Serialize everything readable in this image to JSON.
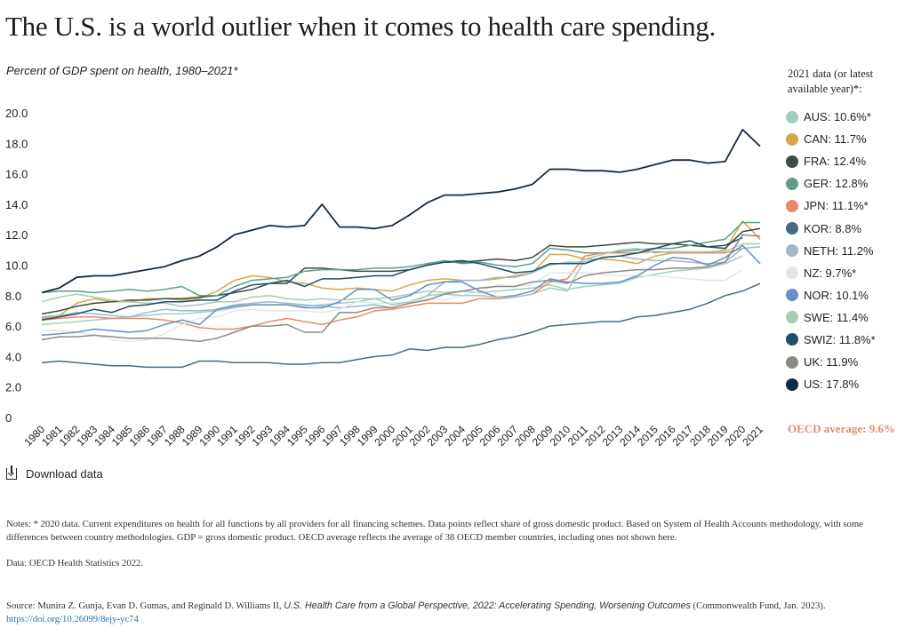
{
  "header": {
    "title": "The U.S. is a world outlier when it comes to health care spending.",
    "subtitle": "Percent of GDP spent on health, 1980–2021*"
  },
  "legend": {
    "heading": "2021 data (or latest available year)*:",
    "oecd_average": "OECD average: 9.6%"
  },
  "download_label": "Download data",
  "footer": {
    "notes": "Notes: * 2020 data. Current expenditures on health for all functions by all providers for all financing schemes. Data points reflect share of gross domestic product. Based on System of Health Accounts methodology, with some differences between country methodologies. GDP = gross domestic product. OECD average reflects the average of 38 OECD member countries, including ones not shown here.",
    "data_source": "Data: OECD Health Statistics 2022.",
    "source_prefix": "Source: Munira Z. Gunja, Evan D. Gumas, and Reginald D. Williams II, ",
    "source_title": "U.S. Health Care from a Global Perspective, 2022: Accelerating Spending, Worsening Outcomes",
    "source_suffix": " (Commonwealth Fund, Jan. 2023). ",
    "source_link": "https://doi.org/10.26099/8ejy-yc74"
  },
  "chart_data": {
    "type": "line",
    "title": "The U.S. is a world outlier when it comes to health care spending.",
    "subtitle": "Percent of GDP spent on health, 1980–2021*",
    "x": [
      1980,
      1981,
      1982,
      1983,
      1984,
      1985,
      1986,
      1987,
      1988,
      1989,
      1990,
      1991,
      1992,
      1993,
      1994,
      1995,
      1996,
      1997,
      1998,
      1999,
      2000,
      2001,
      2002,
      2003,
      2004,
      2005,
      2006,
      2007,
      2008,
      2009,
      2010,
      2011,
      2012,
      2013,
      2014,
      2015,
      2016,
      2017,
      2018,
      2019,
      2020,
      2021
    ],
    "x_tick_labels": [
      "1980",
      "1981",
      "1982",
      "1983",
      "1984",
      "1985",
      "1986",
      "1987",
      "1988",
      "1989",
      "1990",
      "1991",
      "1992",
      "1993",
      "1994",
      "1995",
      "1996",
      "1997",
      "1998",
      "1999",
      "2000",
      "2001",
      "2002",
      "2003",
      "2004",
      "2005",
      "2006",
      "2007",
      "2008",
      "2009",
      "2010",
      "2011",
      "2012",
      "2013",
      "2014",
      "2015",
      "2016",
      "2017",
      "2018",
      "2019",
      "2020",
      "2021"
    ],
    "y_tick_values": [
      0,
      2,
      4,
      6,
      8,
      10,
      12,
      14,
      16,
      18,
      20
    ],
    "y_tick_labels": [
      "0",
      "2.0",
      "4.0",
      "6.0",
      "8.0",
      "10.0",
      "12.0",
      "14.0",
      "16.0",
      "18.0",
      "20.0"
    ],
    "ylim": [
      0,
      20
    ],
    "grid": false,
    "legend_position": "right",
    "series": [
      {
        "name": "AUS: 10.6%*",
        "color": "#9ecfc0",
        "values": [
          6.1,
          6.2,
          6.3,
          6.4,
          6.5,
          6.6,
          6.7,
          6.8,
          6.8,
          6.9,
          7.0,
          7.2,
          7.4,
          7.4,
          7.4,
          7.3,
          7.4,
          7.5,
          7.6,
          7.8,
          7.9,
          8.1,
          8.3,
          8.2,
          8.3,
          8.2,
          8.3,
          8.4,
          8.5,
          8.7,
          8.4,
          8.6,
          8.7,
          8.8,
          9.2,
          9.4,
          9.6,
          9.7,
          9.8,
          10.1,
          10.6,
          null
        ]
      },
      {
        "name": "CAN: 11.7%",
        "color": "#d4a84a",
        "values": [
          6.5,
          6.7,
          7.5,
          7.8,
          7.6,
          7.6,
          7.8,
          7.8,
          7.7,
          7.8,
          8.3,
          9.0,
          9.3,
          9.2,
          8.9,
          8.8,
          8.5,
          8.4,
          8.5,
          8.4,
          8.3,
          8.7,
          9.0,
          9.1,
          9.0,
          9.0,
          9.1,
          9.3,
          9.5,
          10.7,
          10.7,
          10.4,
          10.4,
          10.3,
          10.1,
          10.6,
          10.8,
          10.8,
          10.8,
          11.0,
          12.9,
          11.7
        ]
      },
      {
        "name": "FRA: 12.4%",
        "color": "#3e4a43",
        "values": [
          6.8,
          7.0,
          7.3,
          7.5,
          7.6,
          7.7,
          7.7,
          7.8,
          7.8,
          7.9,
          8.0,
          8.2,
          8.4,
          8.8,
          8.8,
          9.8,
          9.8,
          9.7,
          9.6,
          9.6,
          9.6,
          9.7,
          10.0,
          10.2,
          10.2,
          10.3,
          10.4,
          10.3,
          10.5,
          11.3,
          11.2,
          11.2,
          11.3,
          11.4,
          11.5,
          11.4,
          11.4,
          11.3,
          11.2,
          11.1,
          12.2,
          12.4
        ]
      },
      {
        "name": "GER: 12.8%",
        "color": "#5f9e86",
        "values": [
          8.2,
          8.3,
          8.3,
          8.2,
          8.3,
          8.4,
          8.3,
          8.4,
          8.6,
          8.0,
          8.0,
          8.6,
          9.0,
          9.1,
          9.2,
          9.6,
          9.7,
          9.7,
          9.7,
          9.8,
          9.8,
          9.9,
          10.1,
          10.3,
          10.1,
          10.2,
          10.0,
          9.9,
          10.1,
          11.1,
          11.0,
          10.8,
          10.8,
          10.9,
          11.0,
          11.1,
          11.1,
          11.3,
          11.5,
          11.7,
          12.8,
          12.8
        ]
      },
      {
        "name": "JPN: 11.1%*",
        "color": "#e8896a",
        "values": [
          6.4,
          6.5,
          6.6,
          6.6,
          6.5,
          6.5,
          6.5,
          6.4,
          6.2,
          5.9,
          5.8,
          5.8,
          6.0,
          6.3,
          6.5,
          6.3,
          6.1,
          6.4,
          6.6,
          7.0,
          7.1,
          7.3,
          7.5,
          7.5,
          7.5,
          7.8,
          7.8,
          7.9,
          8.1,
          8.9,
          9.1,
          10.6,
          10.8,
          10.8,
          10.8,
          10.9,
          10.8,
          10.8,
          10.8,
          10.8,
          11.1,
          null
        ]
      },
      {
        "name": "KOR: 8.8%",
        "color": "#476a80",
        "values": [
          3.6,
          3.7,
          3.6,
          3.5,
          3.4,
          3.4,
          3.3,
          3.3,
          3.3,
          3.7,
          3.7,
          3.6,
          3.6,
          3.6,
          3.5,
          3.5,
          3.6,
          3.6,
          3.8,
          4.0,
          4.1,
          4.5,
          4.4,
          4.6,
          4.6,
          4.8,
          5.1,
          5.3,
          5.6,
          6.0,
          6.1,
          6.2,
          6.3,
          6.3,
          6.6,
          6.7,
          6.9,
          7.1,
          7.5,
          8.0,
          8.3,
          8.8
        ]
      },
      {
        "name": "NETH: 11.2%",
        "color": "#a1b7ca",
        "values": [
          6.6,
          6.7,
          6.9,
          6.8,
          6.7,
          6.6,
          6.9,
          7.1,
          7.0,
          7.0,
          7.1,
          7.4,
          7.5,
          7.6,
          7.5,
          7.4,
          7.3,
          7.2,
          7.3,
          7.4,
          7.2,
          7.5,
          8.0,
          8.9,
          9.0,
          9.0,
          9.2,
          9.2,
          9.5,
          10.0,
          10.2,
          10.2,
          10.5,
          10.6,
          10.4,
          10.3,
          10.3,
          10.2,
          10.1,
          10.2,
          11.1,
          11.2
        ]
      },
      {
        "name": "NZ: 9.7%*",
        "color": "#e0e8e6",
        "values": [
          5.7,
          5.7,
          5.6,
          5.4,
          5.1,
          5.0,
          5.1,
          5.5,
          6.1,
          6.5,
          6.6,
          7.0,
          7.1,
          7.0,
          7.0,
          7.0,
          6.9,
          7.1,
          7.6,
          7.5,
          7.5,
          7.6,
          7.8,
          7.7,
          8.0,
          8.3,
          8.7,
          8.6,
          8.7,
          9.5,
          9.5,
          9.5,
          9.4,
          9.3,
          9.3,
          9.3,
          9.2,
          9.1,
          9.0,
          9.0,
          9.7,
          null
        ]
      },
      {
        "name": "NOR: 10.1%",
        "color": "#6690c4",
        "values": [
          5.4,
          5.5,
          5.6,
          5.8,
          5.7,
          5.6,
          5.7,
          6.1,
          6.4,
          6.1,
          7.1,
          7.3,
          7.4,
          7.4,
          7.4,
          7.2,
          7.2,
          7.6,
          8.4,
          8.4,
          7.7,
          8.0,
          8.7,
          8.9,
          8.9,
          8.3,
          7.9,
          8.0,
          8.3,
          9.1,
          8.9,
          8.8,
          8.8,
          8.9,
          9.3,
          10.0,
          10.5,
          10.4,
          10.0,
          10.5,
          11.3,
          10.1
        ]
      },
      {
        "name": "SWE: 11.4%",
        "color": "#a7cbb6",
        "values": [
          7.6,
          7.9,
          8.1,
          7.9,
          7.7,
          7.6,
          7.5,
          7.5,
          7.3,
          7.4,
          7.6,
          7.6,
          7.9,
          8.0,
          7.8,
          7.7,
          7.8,
          7.7,
          7.8,
          7.8,
          7.4,
          7.6,
          8.0,
          8.1,
          8.0,
          8.0,
          7.9,
          7.9,
          8.1,
          8.5,
          8.3,
          10.4,
          10.7,
          11.0,
          11.1,
          10.8,
          10.9,
          10.9,
          10.9,
          10.9,
          11.4,
          11.4
        ]
      },
      {
        "name": "SWIZ: 11.8%*",
        "color": "#1b4f6b",
        "values": [
          6.4,
          6.6,
          6.8,
          7.1,
          6.9,
          7.3,
          7.4,
          7.6,
          7.6,
          7.7,
          7.7,
          8.3,
          8.7,
          8.8,
          9.0,
          8.6,
          9.1,
          9.1,
          9.2,
          9.3,
          9.3,
          9.7,
          10.0,
          10.2,
          10.3,
          10.1,
          9.8,
          9.5,
          9.6,
          10.1,
          10.1,
          10.1,
          10.5,
          10.6,
          10.8,
          11.1,
          11.4,
          11.6,
          11.2,
          11.3,
          11.8,
          null
        ]
      },
      {
        "name": "UK: 11.9%",
        "color": "#8d8a86",
        "values": [
          5.1,
          5.3,
          5.3,
          5.4,
          5.3,
          5.2,
          5.2,
          5.2,
          5.1,
          5.0,
          5.2,
          5.6,
          6.0,
          6.0,
          6.1,
          5.6,
          5.6,
          6.9,
          6.9,
          7.2,
          7.2,
          7.5,
          7.7,
          8.1,
          8.3,
          8.5,
          8.6,
          8.6,
          8.9,
          9.0,
          8.8,
          9.3,
          9.5,
          9.6,
          9.7,
          9.7,
          9.8,
          9.8,
          9.9,
          10.2,
          12.0,
          11.9
        ]
      },
      {
        "name": "US: 17.8%",
        "color": "#142a44",
        "values": [
          8.2,
          8.5,
          9.2,
          9.3,
          9.3,
          9.5,
          9.7,
          9.9,
          10.3,
          10.6,
          11.2,
          12.0,
          12.3,
          12.6,
          12.5,
          12.6,
          14.0,
          12.5,
          12.5,
          12.4,
          12.6,
          13.3,
          14.1,
          14.6,
          14.6,
          14.7,
          14.8,
          15.0,
          15.3,
          16.3,
          16.3,
          16.2,
          16.2,
          16.1,
          16.3,
          16.6,
          16.9,
          16.9,
          16.7,
          16.8,
          18.9,
          17.8
        ]
      }
    ]
  }
}
